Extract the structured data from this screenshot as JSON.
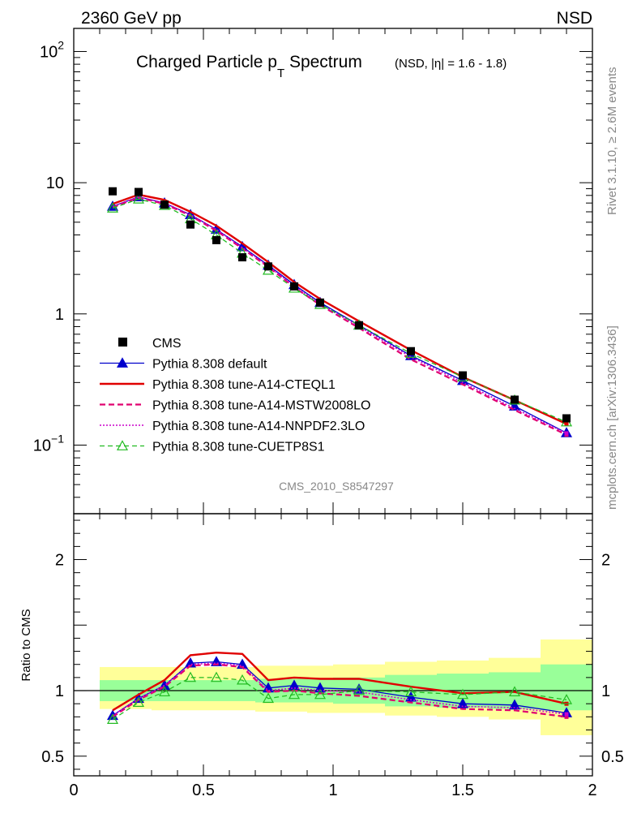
{
  "header": {
    "left": "2360 GeV pp",
    "right": "NSD"
  },
  "title": {
    "main": "Charged Particle p",
    "sub": "T",
    "after": " Spectrum",
    "extra": "(NSD, |η| = 1.6 - 1.8)"
  },
  "side_text": {
    "top": "Rivet 3.1.10, ≥ 2.6M events",
    "bottom": "mcplots.cern.ch [arXiv:1306.3436]"
  },
  "analysis_tag": "CMS_2010_S8547297",
  "ratio_ylabel": "Ratio to CMS",
  "colors": {
    "data": "#000000",
    "default": "#0000cc",
    "cteql1": "#e00000",
    "mstw": "#e0006f",
    "nnpdf": "#cc00cc",
    "cuetp8s1": "#22bb22",
    "band_inner": "#99ff99",
    "band_outer": "#ffff99"
  },
  "chart_data": [
    {
      "type": "line",
      "title": "Charged Particle pT Spectrum (NSD, |η| = 1.6 - 1.8)",
      "yscale": "log",
      "ylim": [
        0.03,
        150
      ],
      "xlim": [
        0,
        2
      ],
      "y_ticks": [
        {
          "value": 0.1,
          "base": "10",
          "exp": "−1"
        },
        {
          "value": 1,
          "base": "1",
          "exp": ""
        },
        {
          "value": 10,
          "base": "10",
          "exp": ""
        },
        {
          "value": 100,
          "base": "10",
          "exp": "2"
        }
      ],
      "legend_position": "bottom-left",
      "x": [
        0.15,
        0.25,
        0.35,
        0.45,
        0.55,
        0.65,
        0.75,
        0.85,
        0.95,
        1.1,
        1.3,
        1.5,
        1.7,
        1.9
      ],
      "series": [
        {
          "name": "CMS",
          "key": "data",
          "style": "square",
          "values": [
            8.6,
            8.5,
            6.8,
            4.8,
            3.65,
            2.7,
            2.3,
            1.62,
            1.22,
            0.82,
            0.52,
            0.34,
            0.222,
            0.16
          ]
        },
        {
          "name": "Pythia 8.308 default",
          "key": "default",
          "style": "solid-triangle",
          "values": [
            6.6,
            7.8,
            7.0,
            5.7,
            4.4,
            3.25,
            2.35,
            1.67,
            1.22,
            0.82,
            0.48,
            0.31,
            0.198,
            0.124
          ]
        },
        {
          "name": "Pythia 8.308 tune-A14-CTEQL1",
          "key": "cteql1",
          "style": "solid",
          "values": [
            6.9,
            8.1,
            7.4,
            6.0,
            4.7,
            3.45,
            2.48,
            1.75,
            1.3,
            0.88,
            0.53,
            0.33,
            0.22,
            0.145
          ]
        },
        {
          "name": "Pythia 8.308 tune-A14-MSTW2008LO",
          "key": "mstw",
          "style": "dashed",
          "values": [
            6.5,
            7.7,
            6.9,
            5.6,
            4.3,
            3.15,
            2.28,
            1.6,
            1.17,
            0.78,
            0.45,
            0.29,
            0.185,
            0.12
          ]
        },
        {
          "name": "Pythia 8.308 tune-A14-NNPDF2.3LO",
          "key": "nnpdf",
          "style": "dotted",
          "values": [
            6.6,
            7.8,
            7.0,
            5.7,
            4.4,
            3.2,
            2.32,
            1.63,
            1.19,
            0.8,
            0.47,
            0.3,
            0.19,
            0.123
          ]
        },
        {
          "name": "Pythia 8.308 tune-CUETP8S1",
          "key": "cuetp8s1",
          "style": "dashed-open-triangle",
          "values": [
            6.4,
            7.5,
            6.7,
            5.3,
            4.0,
            2.9,
            2.15,
            1.57,
            1.18,
            0.82,
            0.5,
            0.33,
            0.22,
            0.15
          ]
        }
      ]
    },
    {
      "type": "line",
      "ylabel": "Ratio to CMS",
      "ylim": [
        0.35,
        2.35
      ],
      "xlim": [
        0,
        2
      ],
      "y_ticks": [
        0.5,
        1,
        2
      ],
      "x_ticks": [
        0,
        0.5,
        1,
        1.5,
        2
      ],
      "x_tick_labels": [
        "0",
        "0.5",
        "1",
        "1.5",
        "2"
      ],
      "x": [
        0.15,
        0.25,
        0.35,
        0.45,
        0.55,
        0.65,
        0.75,
        0.85,
        0.95,
        1.1,
        1.3,
        1.5,
        1.7,
        1.9
      ],
      "bins": [
        [
          0.1,
          0.2
        ],
        [
          0.2,
          0.3
        ],
        [
          0.3,
          0.4
        ],
        [
          0.4,
          0.5
        ],
        [
          0.5,
          0.6
        ],
        [
          0.6,
          0.7
        ],
        [
          0.7,
          0.8
        ],
        [
          0.8,
          0.9
        ],
        [
          0.9,
          1.0
        ],
        [
          1.0,
          1.2
        ],
        [
          1.2,
          1.4
        ],
        [
          1.4,
          1.6
        ],
        [
          1.6,
          1.8
        ],
        [
          1.8,
          2.0
        ]
      ],
      "band_inner": [
        [
          0.92,
          1.08
        ],
        [
          0.92,
          1.08
        ],
        [
          0.92,
          1.08
        ],
        [
          0.92,
          1.08
        ],
        [
          0.92,
          1.08
        ],
        [
          0.92,
          1.08
        ],
        [
          0.91,
          1.09
        ],
        [
          0.91,
          1.09
        ],
        [
          0.91,
          1.09
        ],
        [
          0.9,
          1.1
        ],
        [
          0.88,
          1.12
        ],
        [
          0.87,
          1.13
        ],
        [
          0.86,
          1.14
        ],
        [
          0.85,
          1.2
        ]
      ],
      "band_outer": [
        [
          0.86,
          1.18
        ],
        [
          0.86,
          1.18
        ],
        [
          0.85,
          1.18
        ],
        [
          0.85,
          1.18
        ],
        [
          0.85,
          1.18
        ],
        [
          0.85,
          1.18
        ],
        [
          0.84,
          1.19
        ],
        [
          0.84,
          1.19
        ],
        [
          0.83,
          1.19
        ],
        [
          0.83,
          1.2
        ],
        [
          0.81,
          1.22
        ],
        [
          0.8,
          1.23
        ],
        [
          0.78,
          1.25
        ],
        [
          0.66,
          1.39
        ]
      ],
      "series": [
        {
          "name": "Pythia 8.308 default",
          "key": "default",
          "style": "solid-triangle",
          "values": [
            0.81,
            0.94,
            1.04,
            1.21,
            1.22,
            1.2,
            1.02,
            1.04,
            1.02,
            1.01,
            0.95,
            0.9,
            0.89,
            0.83
          ]
        },
        {
          "name": "Pythia 8.308 tune-A14-CTEQL1",
          "key": "cteql1",
          "style": "solid",
          "values": [
            0.85,
            0.97,
            1.08,
            1.27,
            1.29,
            1.28,
            1.08,
            1.1,
            1.09,
            1.09,
            1.03,
            0.98,
            0.99,
            0.9
          ]
        },
        {
          "name": "Pythia 8.308 tune-A14-MSTW2008LO",
          "key": "mstw",
          "style": "dashed",
          "values": [
            0.8,
            0.93,
            1.03,
            1.19,
            1.2,
            1.18,
            0.99,
            1.0,
            0.98,
            0.96,
            0.91,
            0.86,
            0.85,
            0.8
          ]
        },
        {
          "name": "Pythia 8.308 tune-A14-NNPDF2.3LO",
          "key": "nnpdf",
          "style": "dotted",
          "values": [
            0.81,
            0.94,
            1.04,
            1.2,
            1.21,
            1.19,
            1.0,
            1.02,
            1.0,
            0.99,
            0.93,
            0.88,
            0.87,
            0.82
          ]
        },
        {
          "name": "Pythia 8.308 tune-CUETP8S1",
          "key": "cuetp8s1",
          "style": "dashed-open-triangle",
          "values": [
            0.78,
            0.91,
            0.99,
            1.1,
            1.1,
            1.08,
            0.94,
            0.97,
            0.97,
            1.0,
            0.99,
            0.97,
            0.99,
            0.93
          ]
        }
      ]
    }
  ]
}
